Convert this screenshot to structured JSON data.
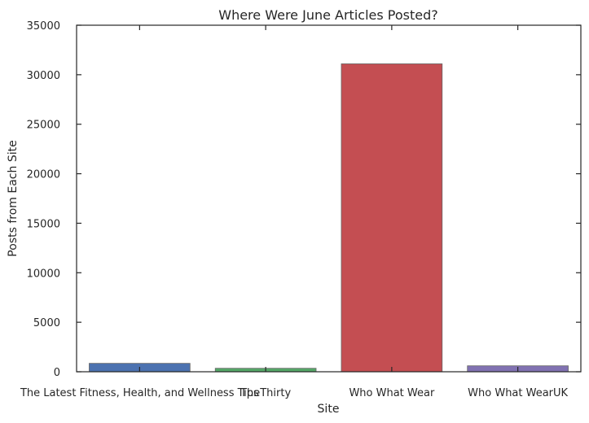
{
  "chart_data": {
    "type": "bar",
    "title": "Where Were June Articles Posted?",
    "xlabel": "Site",
    "ylabel": "Posts from Each Site",
    "categories": [
      "The Latest Fitness, Health, and Wellness Tips",
      "TheThirty",
      "Who What Wear",
      "Who What WearUK"
    ],
    "values": [
      850,
      350,
      31100,
      600
    ],
    "colors": [
      "#4c72b0",
      "#55a868",
      "#c44e52",
      "#8172b2"
    ],
    "ylim": [
      0,
      35000
    ],
    "yticks": [
      0,
      5000,
      10000,
      15000,
      20000,
      25000,
      30000,
      35000
    ],
    "ytick_labels": [
      "0",
      "5000",
      "10000",
      "15000",
      "20000",
      "25000",
      "30000",
      "35000"
    ],
    "grid": false,
    "legend": "none"
  }
}
